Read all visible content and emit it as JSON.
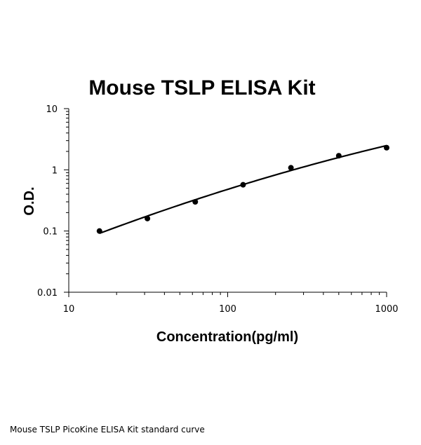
{
  "chart_data": {
    "type": "scatter",
    "title": "Mouse TSLP ELISA Kit",
    "xlabel": "Concentration(pg/ml)",
    "ylabel": "O.D.",
    "xscale": "log",
    "yscale": "log",
    "xlim": [
      10,
      1000
    ],
    "ylim": [
      0.01,
      10
    ],
    "xticks": [
      "10",
      "100",
      "1000"
    ],
    "yticks": [
      "10",
      "1",
      "0.1",
      "0.01"
    ],
    "grid": false,
    "legend": "none",
    "series": [
      {
        "points": [
          {
            "x": 15.6,
            "y": 0.1
          },
          {
            "x": 31.25,
            "y": 0.16
          },
          {
            "x": 62.5,
            "y": 0.3
          },
          {
            "x": 125,
            "y": 0.57
          },
          {
            "x": 250,
            "y": 1.08
          },
          {
            "x": 500,
            "y": 1.7
          },
          {
            "x": 1000,
            "y": 2.3
          }
        ],
        "fit": "smooth-curve",
        "color": "#000000"
      }
    ]
  },
  "caption": "Mouse TSLP PicoKine ELISA Kit standard curve"
}
